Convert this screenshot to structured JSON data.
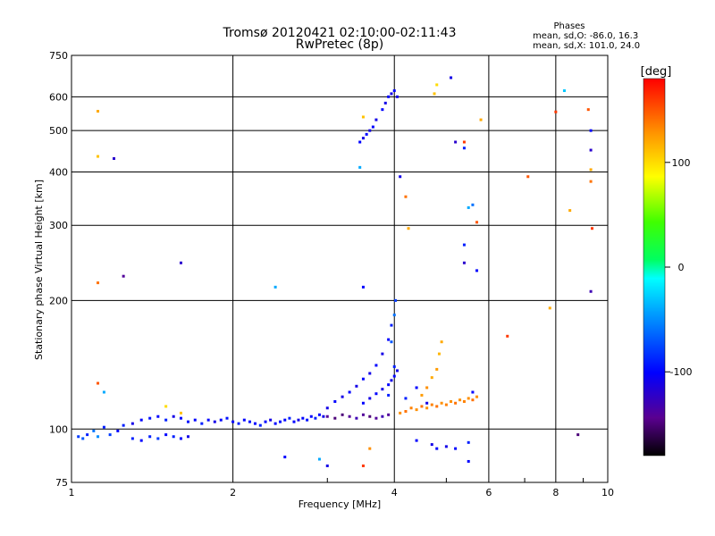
{
  "chart_data": {
    "type": "scatter",
    "title": "Tromsø 20120421 02:10:00-02:11:43",
    "subtitle": "RwPretec (8p)",
    "xlabel": "Frequency [MHz]",
    "ylabel": "Stationary phase Virtual Height [km]",
    "x_scale": "log",
    "y_scale": "log",
    "xlim": [
      1,
      10
    ],
    "ylim": [
      75,
      750
    ],
    "x_ticks": [
      1,
      2,
      4,
      6,
      8,
      10
    ],
    "x_tick_labels": [
      "1",
      "2",
      "4",
      "6",
      "8",
      "10"
    ],
    "y_ticks": [
      75,
      100,
      200,
      300,
      400,
      500,
      600,
      750
    ],
    "y_tick_labels": [
      "75",
      "100",
      "200",
      "300",
      "400",
      "500",
      "600",
      "750"
    ],
    "grid": true,
    "phases_box": {
      "header": "Phases",
      "line_o": "mean, sd,O: -86.0, 16.3",
      "line_x": "mean, sd,X: 101.0, 24.0"
    },
    "colorbar": {
      "label": "[deg]",
      "range": [
        -180,
        180
      ],
      "ticks": [
        100,
        0,
        -100
      ],
      "tick_labels": [
        "100",
        "0",
        "-100"
      ]
    },
    "series": [
      {
        "name_visible": false,
        "points": [
          [
            1.03,
            96,
            -80
          ],
          [
            1.05,
            95,
            -70
          ],
          [
            1.07,
            97,
            -90
          ],
          [
            1.1,
            99,
            -60
          ],
          [
            1.12,
            96,
            -50
          ],
          [
            1.15,
            101,
            -90
          ],
          [
            1.18,
            97,
            -80
          ],
          [
            1.22,
            99,
            -100
          ],
          [
            1.25,
            102,
            -90
          ],
          [
            1.3,
            103,
            -110
          ],
          [
            1.35,
            105,
            -100
          ],
          [
            1.4,
            106,
            -95
          ],
          [
            1.45,
            107,
            -100
          ],
          [
            1.5,
            105,
            -90
          ],
          [
            1.55,
            107,
            -110
          ],
          [
            1.6,
            106,
            -100
          ],
          [
            1.65,
            104,
            -95
          ],
          [
            1.7,
            105,
            -100
          ],
          [
            1.75,
            103,
            -90
          ],
          [
            1.8,
            105,
            -100
          ],
          [
            1.85,
            104,
            -110
          ],
          [
            1.9,
            105,
            -100
          ],
          [
            1.95,
            106,
            -95
          ],
          [
            2.0,
            104,
            -100
          ],
          [
            2.05,
            103,
            -90
          ],
          [
            2.1,
            105,
            -100
          ],
          [
            2.15,
            104,
            -95
          ],
          [
            2.2,
            103,
            -100
          ],
          [
            2.25,
            102,
            -90
          ],
          [
            2.3,
            104,
            -100
          ],
          [
            2.35,
            105,
            -110
          ],
          [
            2.4,
            103,
            -100
          ],
          [
            2.45,
            104,
            -95
          ],
          [
            2.5,
            105,
            -100
          ],
          [
            2.55,
            106,
            -90
          ],
          [
            2.6,
            104,
            -100
          ],
          [
            2.65,
            105,
            -110
          ],
          [
            2.7,
            106,
            -100
          ],
          [
            2.75,
            105,
            -95
          ],
          [
            2.8,
            107,
            -100
          ],
          [
            2.85,
            106,
            -90
          ],
          [
            2.9,
            108,
            -100
          ],
          [
            2.95,
            107,
            -110
          ],
          [
            1.3,
            95,
            -90
          ],
          [
            1.35,
            94,
            -100
          ],
          [
            1.4,
            96,
            -90
          ],
          [
            1.45,
            95,
            -80
          ],
          [
            1.5,
            97,
            -100
          ],
          [
            1.55,
            96,
            -90
          ],
          [
            1.6,
            95,
            -100
          ],
          [
            1.65,
            96,
            -110
          ],
          [
            3.0,
            107,
            -140
          ],
          [
            3.1,
            106,
            -150
          ],
          [
            3.2,
            108,
            -150
          ],
          [
            3.3,
            107,
            -140
          ],
          [
            3.4,
            106,
            -130
          ],
          [
            3.5,
            108,
            -140
          ],
          [
            3.6,
            107,
            -150
          ],
          [
            3.7,
            106,
            -140
          ],
          [
            3.8,
            107,
            -130
          ],
          [
            3.9,
            108,
            -140
          ],
          [
            3.0,
            112,
            -110
          ],
          [
            3.1,
            116,
            -100
          ],
          [
            3.2,
            119,
            -110
          ],
          [
            3.3,
            122,
            -100
          ],
          [
            3.4,
            126,
            -110
          ],
          [
            3.5,
            131,
            -100
          ],
          [
            3.6,
            135,
            -110
          ],
          [
            3.7,
            141,
            -100
          ],
          [
            3.8,
            150,
            -110
          ],
          [
            3.9,
            162,
            -100
          ],
          [
            3.95,
            175,
            -90
          ],
          [
            3.5,
            115,
            -100
          ],
          [
            3.6,
            118,
            -110
          ],
          [
            3.7,
            121,
            -100
          ],
          [
            3.8,
            124,
            -110
          ],
          [
            3.9,
            127,
            -100
          ],
          [
            3.95,
            130,
            -110
          ],
          [
            4.0,
            133,
            -100
          ],
          [
            4.05,
            137,
            -110
          ],
          [
            3.9,
            120,
            -90
          ],
          [
            3.95,
            160,
            -70
          ],
          [
            4.0,
            185,
            -60
          ],
          [
            4.02,
            200,
            -80
          ],
          [
            4.0,
            140,
            -90
          ],
          [
            4.1,
            109,
            130
          ],
          [
            4.2,
            110,
            140
          ],
          [
            4.3,
            112,
            135
          ],
          [
            4.4,
            111,
            130
          ],
          [
            4.5,
            113,
            140
          ],
          [
            4.6,
            112,
            130
          ],
          [
            4.7,
            114,
            135
          ],
          [
            4.8,
            113,
            140
          ],
          [
            4.9,
            115,
            130
          ],
          [
            5.0,
            114,
            135
          ],
          [
            5.1,
            116,
            130
          ],
          [
            5.2,
            115,
            140
          ],
          [
            5.3,
            117,
            130
          ],
          [
            5.4,
            116,
            135
          ],
          [
            5.5,
            118,
            130
          ],
          [
            5.6,
            117,
            140
          ],
          [
            5.7,
            119,
            130
          ],
          [
            4.5,
            120,
            125
          ],
          [
            4.6,
            125,
            130
          ],
          [
            4.7,
            132,
            120
          ],
          [
            4.8,
            138,
            125
          ],
          [
            4.85,
            150,
            115
          ],
          [
            4.9,
            160,
            120
          ],
          [
            4.2,
            118,
            -90
          ],
          [
            4.4,
            125,
            -100
          ],
          [
            4.6,
            115,
            -110
          ],
          [
            4.7,
            92,
            -110
          ],
          [
            4.8,
            90,
            -100
          ],
          [
            5.0,
            91,
            -110
          ],
          [
            5.2,
            90,
            -100
          ],
          [
            4.4,
            94,
            -100
          ],
          [
            5.5,
            93,
            -90
          ],
          [
            5.6,
            122,
            -100
          ],
          [
            3.45,
            470,
            -100
          ],
          [
            3.5,
            480,
            -110
          ],
          [
            3.55,
            490,
            -100
          ],
          [
            3.6,
            500,
            -110
          ],
          [
            3.65,
            510,
            -100
          ],
          [
            3.7,
            530,
            -110
          ],
          [
            3.8,
            560,
            -100
          ],
          [
            3.85,
            580,
            -110
          ],
          [
            3.9,
            600,
            -100
          ],
          [
            3.95,
            610,
            -110
          ],
          [
            4.0,
            620,
            -100
          ],
          [
            4.05,
            600,
            -110
          ],
          [
            1.12,
            555,
            120
          ],
          [
            1.12,
            435,
            110
          ],
          [
            1.2,
            430,
            -120
          ],
          [
            1.12,
            220,
            140
          ],
          [
            1.25,
            228,
            -140
          ],
          [
            1.15,
            122,
            -40
          ],
          [
            1.12,
            128,
            150
          ],
          [
            1.6,
            245,
            -120
          ],
          [
            2.4,
            215,
            -40
          ],
          [
            3.5,
            538,
            110
          ],
          [
            3.45,
            410,
            -40
          ],
          [
            3.5,
            215,
            -100
          ],
          [
            4.1,
            390,
            -110
          ],
          [
            4.2,
            350,
            140
          ],
          [
            4.25,
            295,
            120
          ],
          [
            4.75,
            610,
            110
          ],
          [
            4.8,
            640,
            100
          ],
          [
            5.1,
            665,
            -110
          ],
          [
            5.2,
            470,
            -120
          ],
          [
            5.4,
            470,
            160
          ],
          [
            5.4,
            455,
            -90
          ],
          [
            5.5,
            330,
            -40
          ],
          [
            5.6,
            335,
            -60
          ],
          [
            5.7,
            305,
            150
          ],
          [
            5.8,
            530,
            120
          ],
          [
            5.4,
            270,
            -90
          ],
          [
            5.4,
            245,
            -120
          ],
          [
            5.7,
            235,
            -100
          ],
          [
            6.5,
            165,
            160
          ],
          [
            7.8,
            192,
            120
          ],
          [
            7.1,
            390,
            150
          ],
          [
            8.0,
            553,
            160
          ],
          [
            8.3,
            620,
            -30
          ],
          [
            8.5,
            325,
            120
          ],
          [
            9.2,
            560,
            150
          ],
          [
            9.3,
            500,
            -100
          ],
          [
            9.3,
            450,
            -120
          ],
          [
            9.3,
            405,
            120
          ],
          [
            9.3,
            380,
            140
          ],
          [
            9.3,
            210,
            -130
          ],
          [
            9.35,
            295,
            160
          ],
          [
            8.8,
            97,
            -150
          ],
          [
            2.5,
            86,
            -100
          ],
          [
            2.9,
            85,
            -40
          ],
          [
            3.0,
            82,
            -110
          ],
          [
            3.5,
            82,
            160
          ],
          [
            3.6,
            90,
            130
          ],
          [
            5.5,
            84,
            -100
          ],
          [
            1.6,
            109,
            110
          ],
          [
            1.5,
            113,
            100
          ]
        ]
      }
    ]
  }
}
